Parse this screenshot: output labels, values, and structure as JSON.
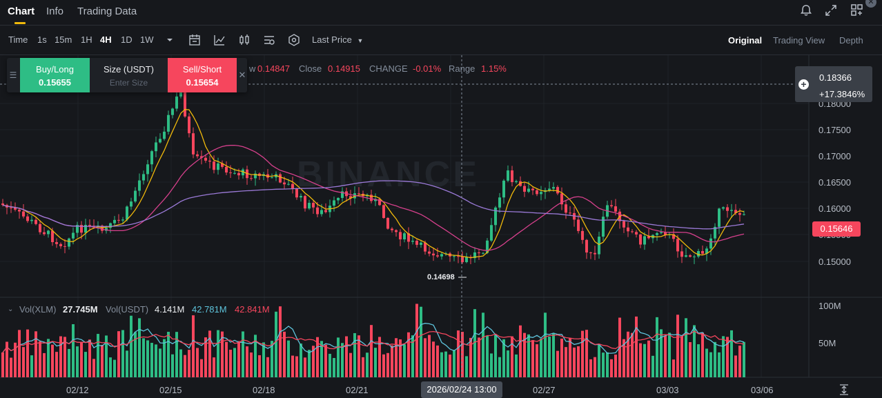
{
  "tabs": [
    {
      "label": "Chart",
      "active": true
    },
    {
      "label": "Info",
      "active": false
    },
    {
      "label": "Trading Data",
      "active": false
    }
  ],
  "top_icons": [
    "bell-icon",
    "expand-icon",
    "layout-grid-icon"
  ],
  "toolbar": {
    "intervals": [
      {
        "label": "Time",
        "active": false
      },
      {
        "label": "1s",
        "active": false
      },
      {
        "label": "15m",
        "active": false
      },
      {
        "label": "1H",
        "active": false
      },
      {
        "label": "4H",
        "active": true
      },
      {
        "label": "1D",
        "active": false
      },
      {
        "label": "1W",
        "active": false
      }
    ],
    "tool_icons": [
      "chevron-down-icon",
      "calendar-icon",
      "indicator-icon",
      "candle-type-icon",
      "settings-sliders-icon",
      "hexagon-icon"
    ],
    "price_type": "Last Price",
    "views": [
      {
        "label": "Original",
        "active": true
      },
      {
        "label": "Trading View",
        "active": false
      },
      {
        "label": "Depth",
        "active": false
      }
    ]
  },
  "trade_panel": {
    "buy_label": "Buy/Long",
    "buy_price": "0.15655",
    "size_label": "Size (USDT)",
    "size_placeholder": "Enter Size",
    "sell_label": "Sell/Short",
    "sell_price": "0.15654"
  },
  "ohlc": {
    "low_partial": "w",
    "low_value": "0.14847",
    "close_label": "Close",
    "close_value": "0.14915",
    "change_label": "CHANGE",
    "change_value": "-0.01%",
    "range_label": "Range",
    "range_value": "1.15%"
  },
  "crosshair": {
    "price": "0.18366",
    "percent": "+17.3846%",
    "time": "2026/02/24 13:00",
    "low_marker": "0.14698"
  },
  "current_price": "0.15646",
  "price_axis": [
    "0.18000",
    "0.17500",
    "0.17000",
    "0.16500",
    "0.16000",
    "0.15500",
    "0.15000"
  ],
  "volume_axis": [
    "100M",
    "50M"
  ],
  "volume_legend": {
    "label_xlm": "Vol(XLM)",
    "value_xlm": "27.745M",
    "label_usdt": "Vol(USDT)",
    "value_usdt": "4.141M",
    "ma1": "42.781M",
    "ma2": "42.841M"
  },
  "time_axis": [
    "02/12",
    "02/15",
    "02/18",
    "02/21",
    "02/27",
    "03/03",
    "03/06"
  ],
  "watermark": "BINANCE",
  "colors": {
    "up": "#2ebd85",
    "down": "#f6465d",
    "ma_yellow": "#f0b90b",
    "ma_pink": "#d6408c",
    "ma_purple": "#9b7ad8",
    "vol_ma_blue": "#5ec4dc"
  }
}
